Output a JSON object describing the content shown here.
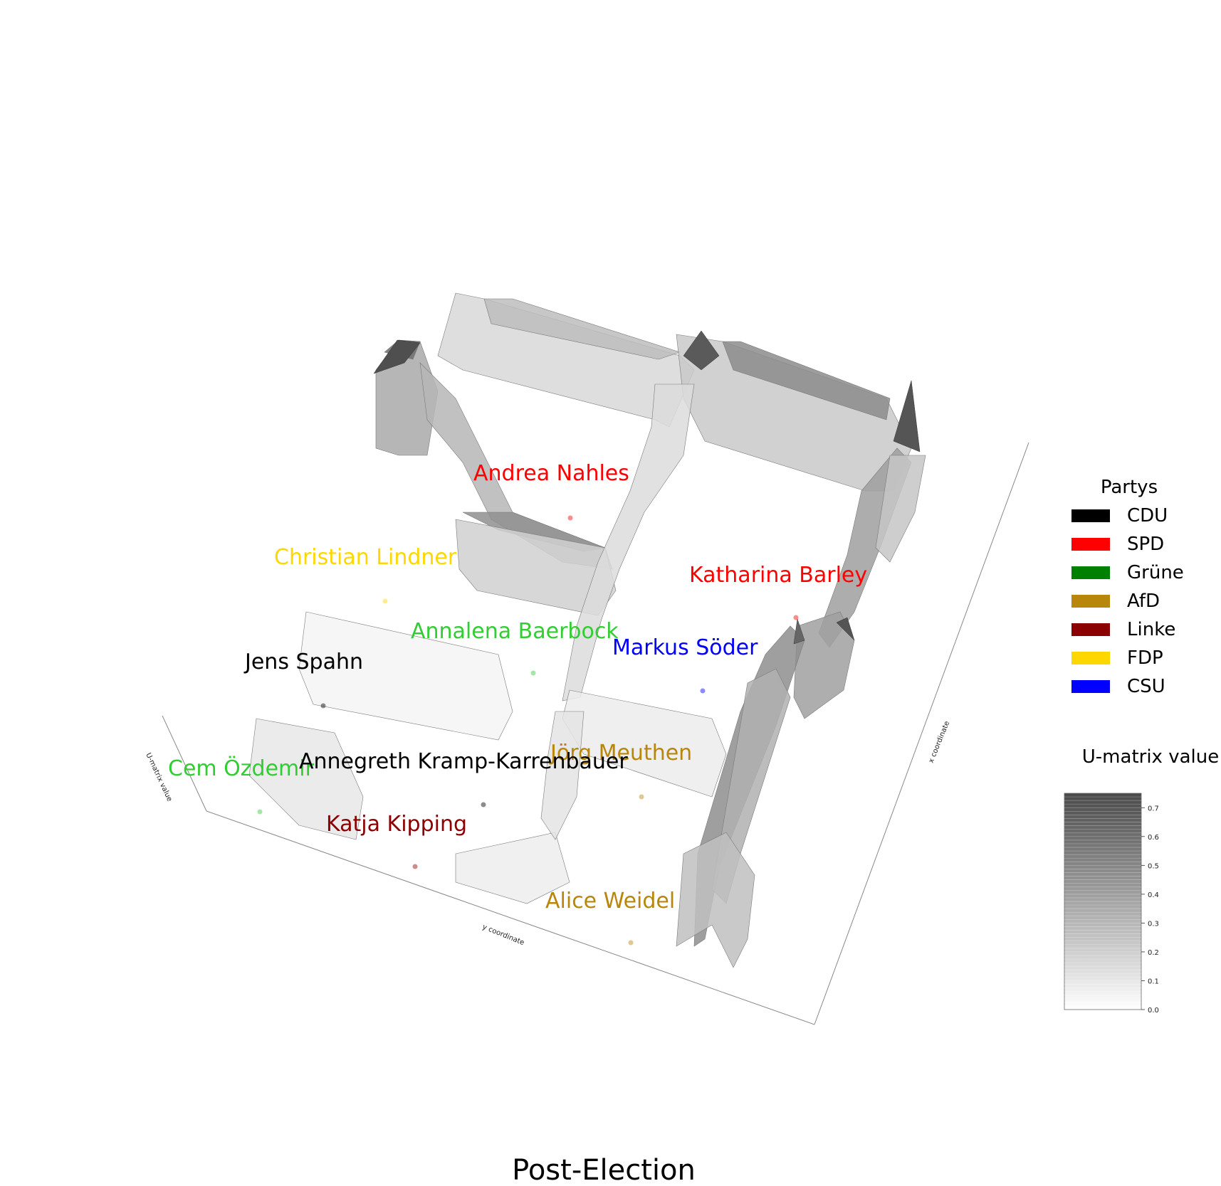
{
  "chart_data": {
    "type": "surface3d",
    "title": "Post-Election",
    "xlabel": "x coordinate",
    "ylabel": "y coordinate",
    "zlabel": "U-matrix value",
    "legend": {
      "title": "Partys",
      "placement": "right",
      "items": [
        {
          "name": "CDU",
          "color": "#000000"
        },
        {
          "name": "SPD",
          "color": "#ff0000"
        },
        {
          "name": "Grüne",
          "color": "#008000"
        },
        {
          "name": "AfD",
          "color": "#b8860b"
        },
        {
          "name": "Linke",
          "color": "#8b0000"
        },
        {
          "name": "FDP",
          "color": "#ffd700"
        },
        {
          "name": "CSU",
          "color": "#0000ff"
        }
      ]
    },
    "colorbar": {
      "title": "U-matrix value",
      "range": [
        0.0,
        0.75
      ],
      "ticks": [
        "0.0",
        "0.1",
        "0.2",
        "0.3",
        "0.4",
        "0.5",
        "0.6",
        "0.7"
      ],
      "colormap": "Greys"
    },
    "points": [
      {
        "label": "Andrea Nahles",
        "party": "SPD",
        "color": "#ff0000"
      },
      {
        "label": "Christian Lindner",
        "party": "FDP",
        "color": "#ffd700"
      },
      {
        "label": "Katharina Barley",
        "party": "SPD",
        "color": "#ff0000"
      },
      {
        "label": "Annalena Baerbock",
        "party": "Grüne",
        "color": "#32cd32"
      },
      {
        "label": "Markus Söder",
        "party": "CSU",
        "color": "#0000ff"
      },
      {
        "label": "Jens Spahn",
        "party": "CDU",
        "color": "#000000"
      },
      {
        "label": "Jörg Meuthen",
        "party": "AfD",
        "color": "#b8860b"
      },
      {
        "label": "Cem Özdemir",
        "party": "Grüne",
        "color": "#32cd32"
      },
      {
        "label": "Annegreth Kramp-Karrenbauer",
        "party": "CDU",
        "color": "#000000"
      },
      {
        "label": "Katja Kipping",
        "party": "Linke",
        "color": "#8b0000"
      },
      {
        "label": "Alice Weidel",
        "party": "AfD",
        "color": "#b8860b"
      }
    ]
  }
}
